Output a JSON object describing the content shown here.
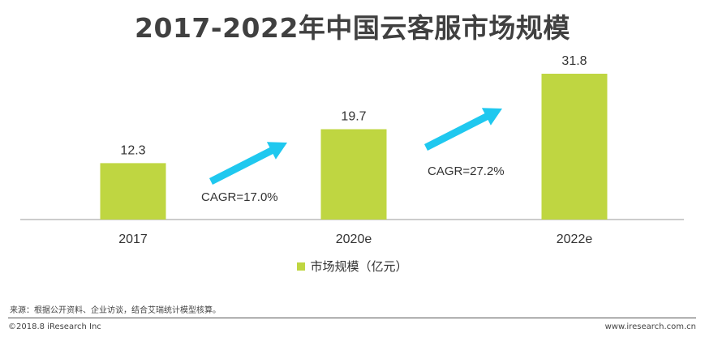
{
  "chart_data": {
    "type": "bar",
    "title": "2017-2022年中国云客服市场规模",
    "categories": [
      "2017",
      "2020e",
      "2022e"
    ],
    "series": [
      {
        "name": "市场规模（亿元）",
        "values": [
          12.3,
          19.7,
          31.8
        ]
      }
    ],
    "ylim": [
      0,
      35
    ],
    "grid": false,
    "legend_position": "bottom",
    "annotations": [
      {
        "text": "CAGR=17.0%",
        "from": "2017",
        "to": "2020e"
      },
      {
        "text": "CAGR=27.2%",
        "from": "2020e",
        "to": "2022e"
      }
    ],
    "colors": {
      "bar": "#bfd641",
      "arrow": "#1fc8ef",
      "axis": "#999999"
    }
  },
  "footer": {
    "source": "来源：根据公开资料、企业访谈，结合艾瑞统计模型核算。",
    "copyright": "©2018.8 iResearch Inc",
    "website": "www.iresearch.com.cn"
  }
}
